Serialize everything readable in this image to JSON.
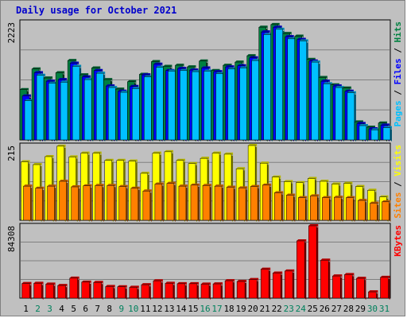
{
  "colors": {
    "frame": "#c0c0c0",
    "title": "#0000cc",
    "hits": "#008040",
    "files": "#0000ff",
    "pages": "#00c0ff",
    "visits": "#ffff00",
    "sites": "#ff8000",
    "kbytes": "#ff0000",
    "weekend_label": "#00805c",
    "weekday_label": "#000000"
  },
  "chart_data": {
    "type": "bar",
    "title": "Daily usage for October 2021",
    "categories": [
      "1",
      "2",
      "3",
      "4",
      "5",
      "6",
      "7",
      "8",
      "9",
      "10",
      "11",
      "12",
      "13",
      "14",
      "15",
      "16",
      "17",
      "18",
      "19",
      "20",
      "21",
      "22",
      "23",
      "24",
      "25",
      "26",
      "27",
      "28",
      "29",
      "30",
      "31"
    ],
    "weekend_days": [
      "9",
      "10",
      "16",
      "17",
      "23",
      "24",
      "30",
      "31",
      "2",
      "3"
    ],
    "panels": [
      {
        "id": "hits_files_pages",
        "max_label": "2223",
        "ylim": [
          0,
          2223
        ],
        "legend": [
          "Pages",
          "Files",
          "Hits"
        ],
        "series": [
          {
            "name": "Hits",
            "values": [
              950,
              1340,
              1170,
              1270,
              1500,
              1230,
              1360,
              1140,
              960,
              1100,
              1240,
              1480,
              1390,
              1410,
              1380,
              1490,
              1310,
              1410,
              1470,
              1590,
              2130,
              2180,
              2010,
              1960,
              1520,
              1180,
              1040,
              980,
              340,
              240,
              320
            ]
          },
          {
            "name": "Files",
            "values": [
              830,
              1270,
              1110,
              1140,
              1450,
              1190,
              1310,
              1020,
              920,
              1010,
              1230,
              1430,
              1310,
              1350,
              1320,
              1360,
              1290,
              1380,
              1400,
              1550,
              2040,
              2130,
              1950,
              1900,
              1490,
              1110,
              1020,
              920,
              310,
              210,
              280
            ]
          },
          {
            "name": "Pages",
            "values": [
              740,
              1220,
              1070,
              1090,
              1390,
              1140,
              1260,
              990,
              900,
              970,
              1190,
              1370,
              1300,
              1310,
              1290,
              1300,
              1250,
              1340,
              1360,
              1500,
              1990,
              2090,
              1910,
              1870,
              1470,
              1060,
              990,
              890,
              270,
              190,
              230
            ]
          }
        ]
      },
      {
        "id": "visits_sites",
        "max_label": "215",
        "ylim": [
          0,
          215
        ],
        "legend": [
          "Sites",
          "Visits"
        ],
        "series": [
          {
            "name": "Visits",
            "values": [
              168,
              160,
              183,
              213,
              182,
              193,
              193,
              172,
              172,
              170,
              135,
              193,
              197,
              172,
              163,
              178,
              193,
              190,
              148,
              215,
              164,
              124,
              111,
              108,
              120,
              112,
              104,
              106,
              97,
              86,
              67
            ]
          },
          {
            "name": "Sites",
            "values": [
              98,
              92,
              98,
              112,
              96,
              99,
              100,
              100,
              97,
              92,
              84,
              104,
              106,
              98,
              101,
              100,
              98,
              95,
              93,
              97,
              101,
              79,
              72,
              65,
              70,
              65,
              66,
              65,
              57,
              49,
              53
            ]
          }
        ]
      },
      {
        "id": "kbytes",
        "max_label": "84308",
        "ylim": [
          0,
          84308
        ],
        "legend": [
          "KBytes"
        ],
        "series": [
          {
            "name": "KBytes",
            "values": [
              17000,
              17300,
              16300,
              14700,
              23300,
              18700,
              18300,
              13500,
              13200,
              12600,
              15600,
              20200,
              17300,
              16800,
              16800,
              16300,
              16600,
              20300,
              19400,
              21600,
              33700,
              29200,
              31600,
              66700,
              84300,
              44200,
              25800,
              27500,
              23100,
              7300,
              24200
            ]
          }
        ]
      }
    ]
  }
}
